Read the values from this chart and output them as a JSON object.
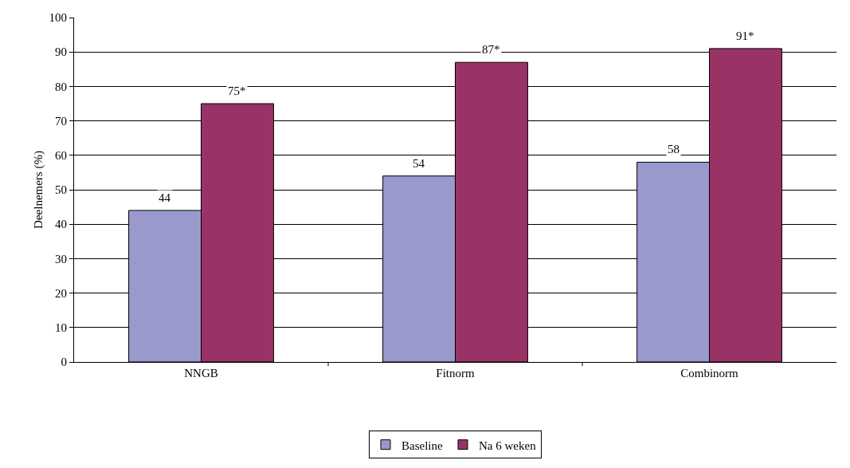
{
  "chart_data": {
    "type": "bar",
    "ylabel": "Deelnemers (%)",
    "categories": [
      "NNGB",
      "Fitnorm",
      "Combinorm"
    ],
    "series": [
      {
        "name": "Baseline",
        "color": "#9999cc",
        "values": [
          44,
          54,
          58
        ],
        "value_labels": [
          "44",
          "54",
          "58"
        ]
      },
      {
        "name": "Na 6 weken",
        "color": "#993366",
        "values": [
          75,
          87,
          91
        ],
        "value_labels": [
          "75*",
          "87*",
          "91*"
        ]
      }
    ],
    "ylim": [
      0,
      100
    ],
    "yticks": [
      0,
      10,
      20,
      30,
      40,
      50,
      60,
      70,
      80,
      90,
      100
    ],
    "grid": "y",
    "legend": "bottom"
  }
}
